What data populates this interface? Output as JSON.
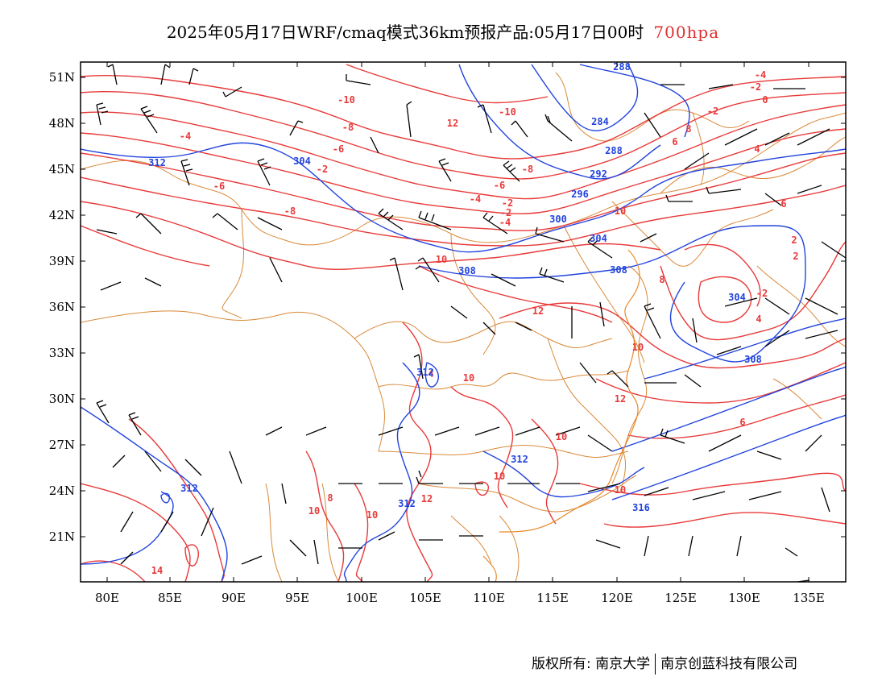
{
  "title": {
    "text": "2025年05月17日WRF/cmaq模式36km预报产品:05月17日00时",
    "level": "700hpa"
  },
  "axes": {
    "lon_ticks": [
      "80E",
      "85E",
      "90E",
      "95E",
      "100E",
      "105E",
      "110E",
      "115E",
      "120E",
      "125E",
      "130E",
      "135E"
    ],
    "lat_ticks": [
      "51N",
      "48N",
      "45N",
      "42N",
      "39N",
      "36N",
      "33N",
      "30N",
      "27N",
      "24N",
      "21N"
    ],
    "lon_range": [
      78,
      138
    ],
    "lat_range": [
      18,
      52
    ]
  },
  "colors": {
    "temperature": "#e83a3a",
    "geopotential": "#2244dd",
    "border": "#d98a3a",
    "wind": "#000000"
  },
  "contour_labels": {
    "temperature": [
      "-4",
      "-2",
      "0",
      "-2",
      "-10",
      "-10",
      "-8",
      "-6",
      "-4",
      "-2",
      "-8",
      "-6",
      "-4",
      "-2",
      "-2",
      "-4",
      "-6",
      "-8",
      "12",
      "10",
      "12",
      "10",
      "8",
      "6",
      "4",
      "2",
      "-2",
      "4",
      "8",
      "12",
      "10",
      "10",
      "10",
      "10",
      "12",
      "10",
      "10",
      "8",
      "10",
      "14",
      "6",
      "6",
      "2",
      "4"
    ],
    "geopotential": [
      "288",
      "284",
      "288",
      "292",
      "296",
      "300",
      "304",
      "304",
      "308",
      "308",
      "304",
      "308",
      "312",
      "312",
      "312",
      "312",
      "312",
      "316"
    ]
  },
  "footer": {
    "left": "版权所有: 南京大学",
    "right": "南京创蓝科技有限公司"
  }
}
